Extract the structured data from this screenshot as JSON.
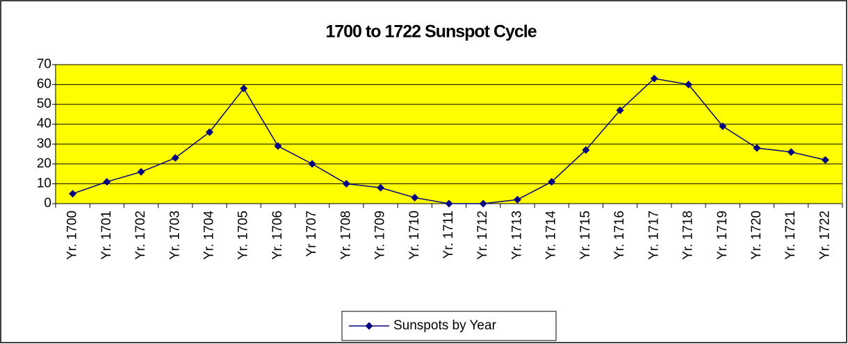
{
  "chart_data": {
    "type": "line",
    "title": "1700 to 1722 Sunspot Cycle",
    "categories": [
      "Yr. 1700",
      "Yr. 1701",
      "Yr. 1702",
      "Yr. 1703",
      "Yr. 1704",
      "Yr. 1705",
      "Yr. 1706",
      "Yr 1707",
      "Yr. 1708",
      "Yr. 1709",
      "Yr. 1710",
      "Yr. 1711",
      "Yr. 1712",
      "Yr. 1713",
      "Yr. 1714",
      "Yr. 1715",
      "Yr. 1716",
      "Yr. 1717",
      "Yr. 1718",
      "Yr. 1719",
      "Yr. 1720",
      "Yr. 1721",
      "Yr. 1722"
    ],
    "series": [
      {
        "name": "Sunspots by Year",
        "color": "#000080",
        "values": [
          5,
          11,
          16,
          23,
          36,
          58,
          29,
          20,
          10,
          8,
          3,
          0,
          0,
          2,
          11,
          27,
          47,
          63,
          60,
          39,
          28,
          26,
          22
        ]
      }
    ],
    "ylim": [
      0,
      70
    ],
    "yticks": [
      0,
      10,
      20,
      30,
      40,
      50,
      60,
      70
    ],
    "grid": true,
    "plot_background": "#ffff00",
    "legend": "bottom"
  }
}
